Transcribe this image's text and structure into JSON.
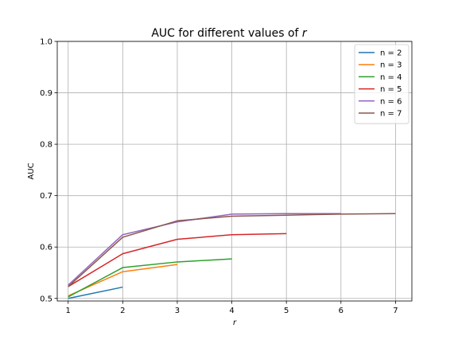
{
  "chart_data": {
    "type": "line",
    "title": "AUC for different values of",
    "title_var": "r",
    "xlabel": "r",
    "ylabel": "AUC",
    "xlim": [
      0.8,
      7.3
    ],
    "ylim": [
      0.495,
      1.0
    ],
    "x_ticks": [
      1,
      2,
      3,
      4,
      5,
      6,
      7
    ],
    "y_ticks": [
      0.5,
      0.6,
      0.7,
      0.8,
      0.9,
      1.0
    ],
    "y_tick_labels": [
      "0.5",
      "0.6",
      "0.7",
      "0.8",
      "0.9",
      "1.0"
    ],
    "grid": true,
    "legend_position": "top-right",
    "series": [
      {
        "name": "n = 2",
        "color": "#1f77b4",
        "x": [
          1,
          2
        ],
        "values": [
          0.5,
          0.522
        ]
      },
      {
        "name": "n = 3",
        "color": "#ff7f0e",
        "x": [
          1,
          2,
          3
        ],
        "values": [
          0.505,
          0.552,
          0.566
        ]
      },
      {
        "name": "n = 4",
        "color": "#2ca02c",
        "x": [
          1,
          2,
          3,
          4
        ],
        "values": [
          0.503,
          0.56,
          0.571,
          0.577
        ]
      },
      {
        "name": "n = 5",
        "color": "#d62728",
        "x": [
          1,
          2,
          3,
          4,
          5
        ],
        "values": [
          0.523,
          0.587,
          0.615,
          0.624,
          0.626
        ]
      },
      {
        "name": "n = 6",
        "color": "#9467bd",
        "x": [
          1,
          2,
          3,
          4,
          5,
          6
        ],
        "values": [
          0.526,
          0.624,
          0.649,
          0.664,
          0.665,
          0.665
        ]
      },
      {
        "name": "n = 7",
        "color": "#8c564b",
        "x": [
          1,
          2,
          3,
          4,
          5,
          6,
          7
        ],
        "values": [
          0.523,
          0.619,
          0.651,
          0.66,
          0.662,
          0.664,
          0.665
        ]
      }
    ]
  }
}
